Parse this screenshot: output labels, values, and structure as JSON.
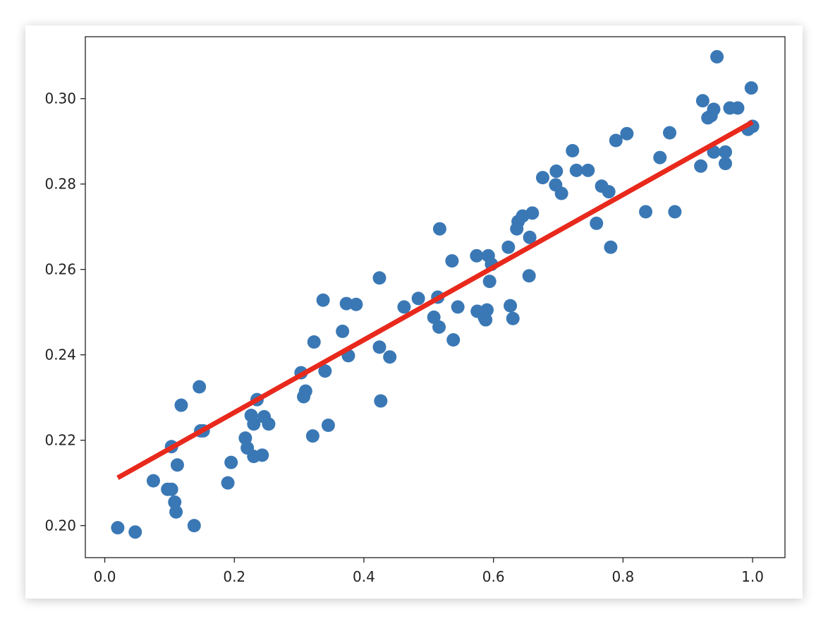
{
  "chart_data": {
    "type": "scatter",
    "title": "",
    "xlabel": "",
    "ylabel": "",
    "xlim": [
      -0.03,
      1.05
    ],
    "ylim": [
      0.1925,
      0.3145
    ],
    "xticks": [
      "0.0",
      "0.2",
      "0.4",
      "0.6",
      "0.8",
      "1.0"
    ],
    "yticks": [
      "0.20",
      "0.22",
      "0.24",
      "0.26",
      "0.28",
      "0.30"
    ],
    "grid": false,
    "colors": {
      "points": "#3a78b5",
      "fit_line": "#e8291c",
      "axes": "#222222"
    },
    "series": [
      {
        "kind": "scatter",
        "points": [
          [
            0.02,
            0.1995
          ],
          [
            0.047,
            0.1985
          ],
          [
            0.075,
            0.2105
          ],
          [
            0.097,
            0.2085
          ],
          [
            0.103,
            0.2085
          ],
          [
            0.103,
            0.2185
          ],
          [
            0.108,
            0.2055
          ],
          [
            0.11,
            0.2032
          ],
          [
            0.112,
            0.2142
          ],
          [
            0.118,
            0.2282
          ],
          [
            0.138,
            0.2
          ],
          [
            0.146,
            0.2325
          ],
          [
            0.148,
            0.2222
          ],
          [
            0.152,
            0.2222
          ],
          [
            0.19,
            0.21
          ],
          [
            0.195,
            0.2148
          ],
          [
            0.217,
            0.2205
          ],
          [
            0.22,
            0.2182
          ],
          [
            0.226,
            0.2258
          ],
          [
            0.23,
            0.2162
          ],
          [
            0.23,
            0.2238
          ],
          [
            0.235,
            0.2295
          ],
          [
            0.243,
            0.2165
          ],
          [
            0.246,
            0.2255
          ],
          [
            0.253,
            0.2238
          ],
          [
            0.303,
            0.2358
          ],
          [
            0.307,
            0.2302
          ],
          [
            0.31,
            0.2315
          ],
          [
            0.321,
            0.221
          ],
          [
            0.323,
            0.243
          ],
          [
            0.337,
            0.2528
          ],
          [
            0.34,
            0.2362
          ],
          [
            0.345,
            0.2235
          ],
          [
            0.367,
            0.2455
          ],
          [
            0.373,
            0.252
          ],
          [
            0.376,
            0.2398
          ],
          [
            0.388,
            0.2518
          ],
          [
            0.424,
            0.258
          ],
          [
            0.424,
            0.2418
          ],
          [
            0.426,
            0.2292
          ],
          [
            0.44,
            0.2395
          ],
          [
            0.462,
            0.2512
          ],
          [
            0.484,
            0.2532
          ],
          [
            0.508,
            0.2488
          ],
          [
            0.514,
            0.2535
          ],
          [
            0.516,
            0.2465
          ],
          [
            0.517,
            0.2695
          ],
          [
            0.536,
            0.262
          ],
          [
            0.538,
            0.2435
          ],
          [
            0.545,
            0.2512
          ],
          [
            0.574,
            0.2632
          ],
          [
            0.575,
            0.2502
          ],
          [
            0.586,
            0.2488
          ],
          [
            0.588,
            0.2482
          ],
          [
            0.59,
            0.2505
          ],
          [
            0.592,
            0.2632
          ],
          [
            0.594,
            0.2572
          ],
          [
            0.597,
            0.2612
          ],
          [
            0.623,
            0.2652
          ],
          [
            0.626,
            0.2515
          ],
          [
            0.63,
            0.2485
          ],
          [
            0.636,
            0.2695
          ],
          [
            0.638,
            0.2712
          ],
          [
            0.645,
            0.2725
          ],
          [
            0.655,
            0.2585
          ],
          [
            0.656,
            0.2675
          ],
          [
            0.66,
            0.2732
          ],
          [
            0.676,
            0.2815
          ],
          [
            0.696,
            0.2798
          ],
          [
            0.697,
            0.283
          ],
          [
            0.705,
            0.2778
          ],
          [
            0.722,
            0.2878
          ],
          [
            0.728,
            0.2832
          ],
          [
            0.746,
            0.2832
          ],
          [
            0.759,
            0.2708
          ],
          [
            0.767,
            0.2795
          ],
          [
            0.778,
            0.2782
          ],
          [
            0.781,
            0.2652
          ],
          [
            0.789,
            0.2902
          ],
          [
            0.806,
            0.2918
          ],
          [
            0.835,
            0.2735
          ],
          [
            0.857,
            0.2862
          ],
          [
            0.872,
            0.292
          ],
          [
            0.88,
            0.2735
          ],
          [
            0.92,
            0.2842
          ],
          [
            0.923,
            0.2995
          ],
          [
            0.931,
            0.2955
          ],
          [
            0.936,
            0.296
          ],
          [
            0.94,
            0.2975
          ],
          [
            0.94,
            0.2875
          ],
          [
            0.945,
            0.3098
          ],
          [
            0.958,
            0.2875
          ],
          [
            0.958,
            0.2848
          ],
          [
            0.965,
            0.2978
          ],
          [
            0.977,
            0.2978
          ],
          [
            0.993,
            0.2928
          ],
          [
            0.998,
            0.3025
          ],
          [
            1.0,
            0.2935
          ]
        ]
      },
      {
        "kind": "line",
        "points": [
          [
            0.02,
            0.2112
          ],
          [
            1.0,
            0.2945
          ]
        ]
      }
    ]
  }
}
